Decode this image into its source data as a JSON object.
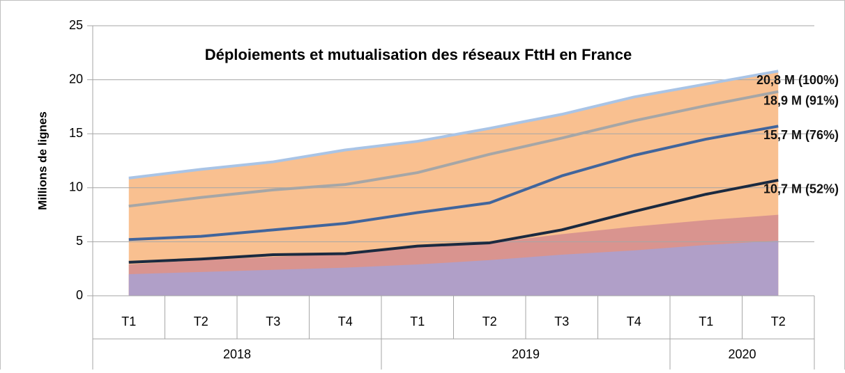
{
  "chart_data": {
    "type": "area",
    "title": "Déploiements et mutualisation des réseaux FttH en France",
    "y_label": "Millions de lignes",
    "categories": [
      "T1",
      "T2",
      "T3",
      "T4",
      "T1",
      "T2",
      "T3",
      "T4",
      "T1",
      "T2"
    ],
    "groups": [
      {
        "label": "2018",
        "count": 4
      },
      {
        "label": "2019",
        "count": 4
      },
      {
        "label": "2020",
        "count": 2
      }
    ],
    "ylim": [
      0,
      25
    ],
    "yticks": [
      0,
      5,
      10,
      15,
      20,
      25
    ],
    "grid": true,
    "series": [
      {
        "kind": "area",
        "color": "#f9c090",
        "stroke": "#a9c4e6",
        "values": [
          10.9,
          11.7,
          12.4,
          13.5,
          14.3,
          15.5,
          16.8,
          18.4,
          19.6,
          20.8
        ],
        "label": "20,8 M (100%)"
      },
      {
        "kind": "area",
        "color": "#d9948f",
        "values": [
          2.9,
          3.3,
          3.6,
          3.9,
          4.5,
          4.9,
          5.7,
          6.4,
          7.0,
          7.5
        ]
      },
      {
        "kind": "area",
        "color": "#b09fc8",
        "values": [
          2.0,
          2.2,
          2.4,
          2.6,
          2.9,
          3.3,
          3.8,
          4.2,
          4.7,
          5.1
        ]
      },
      {
        "kind": "line",
        "color": "#a6a6a6",
        "values": [
          8.3,
          9.1,
          9.8,
          10.3,
          11.4,
          13.1,
          14.6,
          16.2,
          17.6,
          18.9
        ],
        "label": "18,9 M (91%)"
      },
      {
        "kind": "line",
        "color": "#41659c",
        "values": [
          5.2,
          5.5,
          6.1,
          6.7,
          7.7,
          8.6,
          11.1,
          13.0,
          14.5,
          15.7
        ],
        "label": "15,7 M (76%)"
      },
      {
        "kind": "line",
        "color": "#1b2a40",
        "values": [
          3.1,
          3.4,
          3.8,
          3.9,
          4.6,
          4.9,
          6.1,
          7.8,
          9.4,
          10.7
        ],
        "label": "10,7 M (52%)"
      }
    ]
  }
}
